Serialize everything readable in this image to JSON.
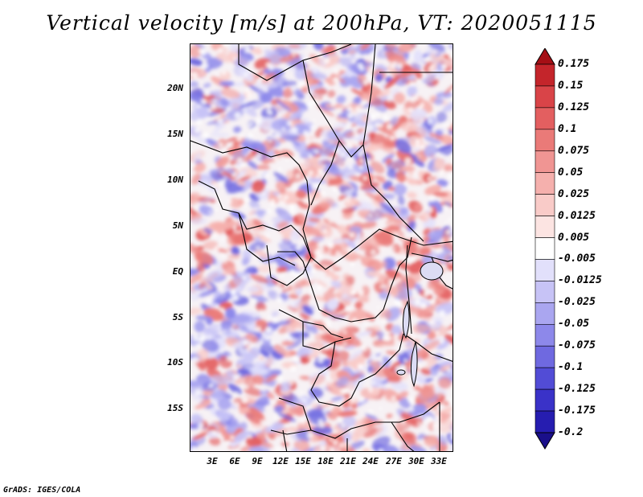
{
  "title": "Vertical velocity [m/s] at 200hPa, VT: 2020051115",
  "credit": "GrADS: IGES/COLA",
  "axes": {
    "lat_labels": [
      "20N",
      "15N",
      "10N",
      "5N",
      "EQ",
      "5S",
      "10S",
      "15S"
    ],
    "lon_labels": [
      "3E",
      "6E",
      "9E",
      "12E",
      "15E",
      "18E",
      "21E",
      "24E",
      "27E",
      "30E",
      "33E"
    ]
  },
  "colorbar": {
    "labels": [
      "0.175",
      "0.15",
      "0.125",
      "0.1",
      "0.075",
      "0.05",
      "0.025",
      "0.0125",
      "0.005",
      "-0.005",
      "-0.0125",
      "-0.025",
      "-0.05",
      "-0.075",
      "-0.1",
      "-0.125",
      "-0.175",
      "-0.2"
    ],
    "colors": [
      "#a50f15",
      "#c4252b",
      "#d94448",
      "#e35f60",
      "#ea7a78",
      "#f09593",
      "#f5b0ad",
      "#f9cbc8",
      "#fce4e2",
      "#ffffff",
      "#e2e0fb",
      "#c7c3f6",
      "#aaa6f0",
      "#8d88ea",
      "#6f69e0",
      "#524cd6",
      "#3a32c8",
      "#261db0",
      "#1a0f8a"
    ]
  },
  "colors": {
    "warm": "#ea7a78",
    "cool": "#8d88ea"
  }
}
